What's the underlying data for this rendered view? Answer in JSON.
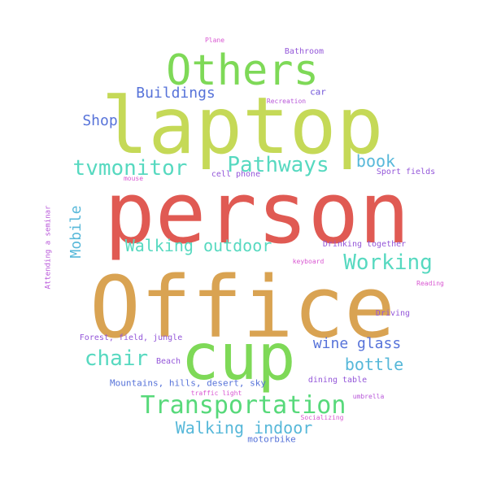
{
  "cloud": {
    "words": [
      {
        "text": "person",
        "color": "#e05a53"
      },
      {
        "text": "Office",
        "color": "#d9a352"
      },
      {
        "text": "laptop",
        "color": "#c5d957"
      },
      {
        "text": "cup",
        "color": "#7ed957"
      },
      {
        "text": "Others",
        "color": "#7ed957"
      },
      {
        "text": "Transportation",
        "color": "#57d97a"
      },
      {
        "text": "Pathways",
        "color": "#57d9c0"
      },
      {
        "text": "tvmonitor",
        "color": "#57d9c0"
      },
      {
        "text": "Working",
        "color": "#57d9c0"
      },
      {
        "text": "chair",
        "color": "#57d9c0"
      },
      {
        "text": "Walking outdoor",
        "color": "#57d9c0"
      },
      {
        "text": "Walking indoor",
        "color": "#57b8d9"
      },
      {
        "text": "bottle",
        "color": "#57b8d9"
      },
      {
        "text": "book",
        "color": "#57b8d9"
      },
      {
        "text": "Mobile",
        "color": "#57b8d9"
      },
      {
        "text": "wine glass",
        "color": "#5773d9"
      },
      {
        "text": "Buildings",
        "color": "#5773d9"
      },
      {
        "text": "Shop",
        "color": "#5773d9"
      },
      {
        "text": "Mountains, hills, desert, sky",
        "color": "#5773d9"
      },
      {
        "text": "motorbike",
        "color": "#5773d9"
      },
      {
        "text": "car",
        "color": "#7357d9"
      },
      {
        "text": "Bathroom",
        "color": "#9457d9"
      },
      {
        "text": "cell phone",
        "color": "#9457d9"
      },
      {
        "text": "Sport fields",
        "color": "#9457d9"
      },
      {
        "text": "Drinking together",
        "color": "#9457d9"
      },
      {
        "text": "Forest, field, jungle",
        "color": "#9457d9"
      },
      {
        "text": "Driving",
        "color": "#9457d9"
      },
      {
        "text": "dining table",
        "color": "#9457d9"
      },
      {
        "text": "Beach",
        "color": "#9457d9"
      },
      {
        "text": "Attending a seminar",
        "color": "#b857d9"
      },
      {
        "text": "Recreation",
        "color": "#b857d9"
      },
      {
        "text": "umbrella",
        "color": "#b857d9"
      },
      {
        "text": "keyboard",
        "color": "#d957d2"
      },
      {
        "text": "Reading",
        "color": "#d957d2"
      },
      {
        "text": "Plane",
        "color": "#d957d2"
      },
      {
        "text": "mouse",
        "color": "#d957d2"
      },
      {
        "text": "traffic light",
        "color": "#d957d2"
      },
      {
        "text": "Socializing",
        "color": "#d957d2"
      }
    ]
  }
}
